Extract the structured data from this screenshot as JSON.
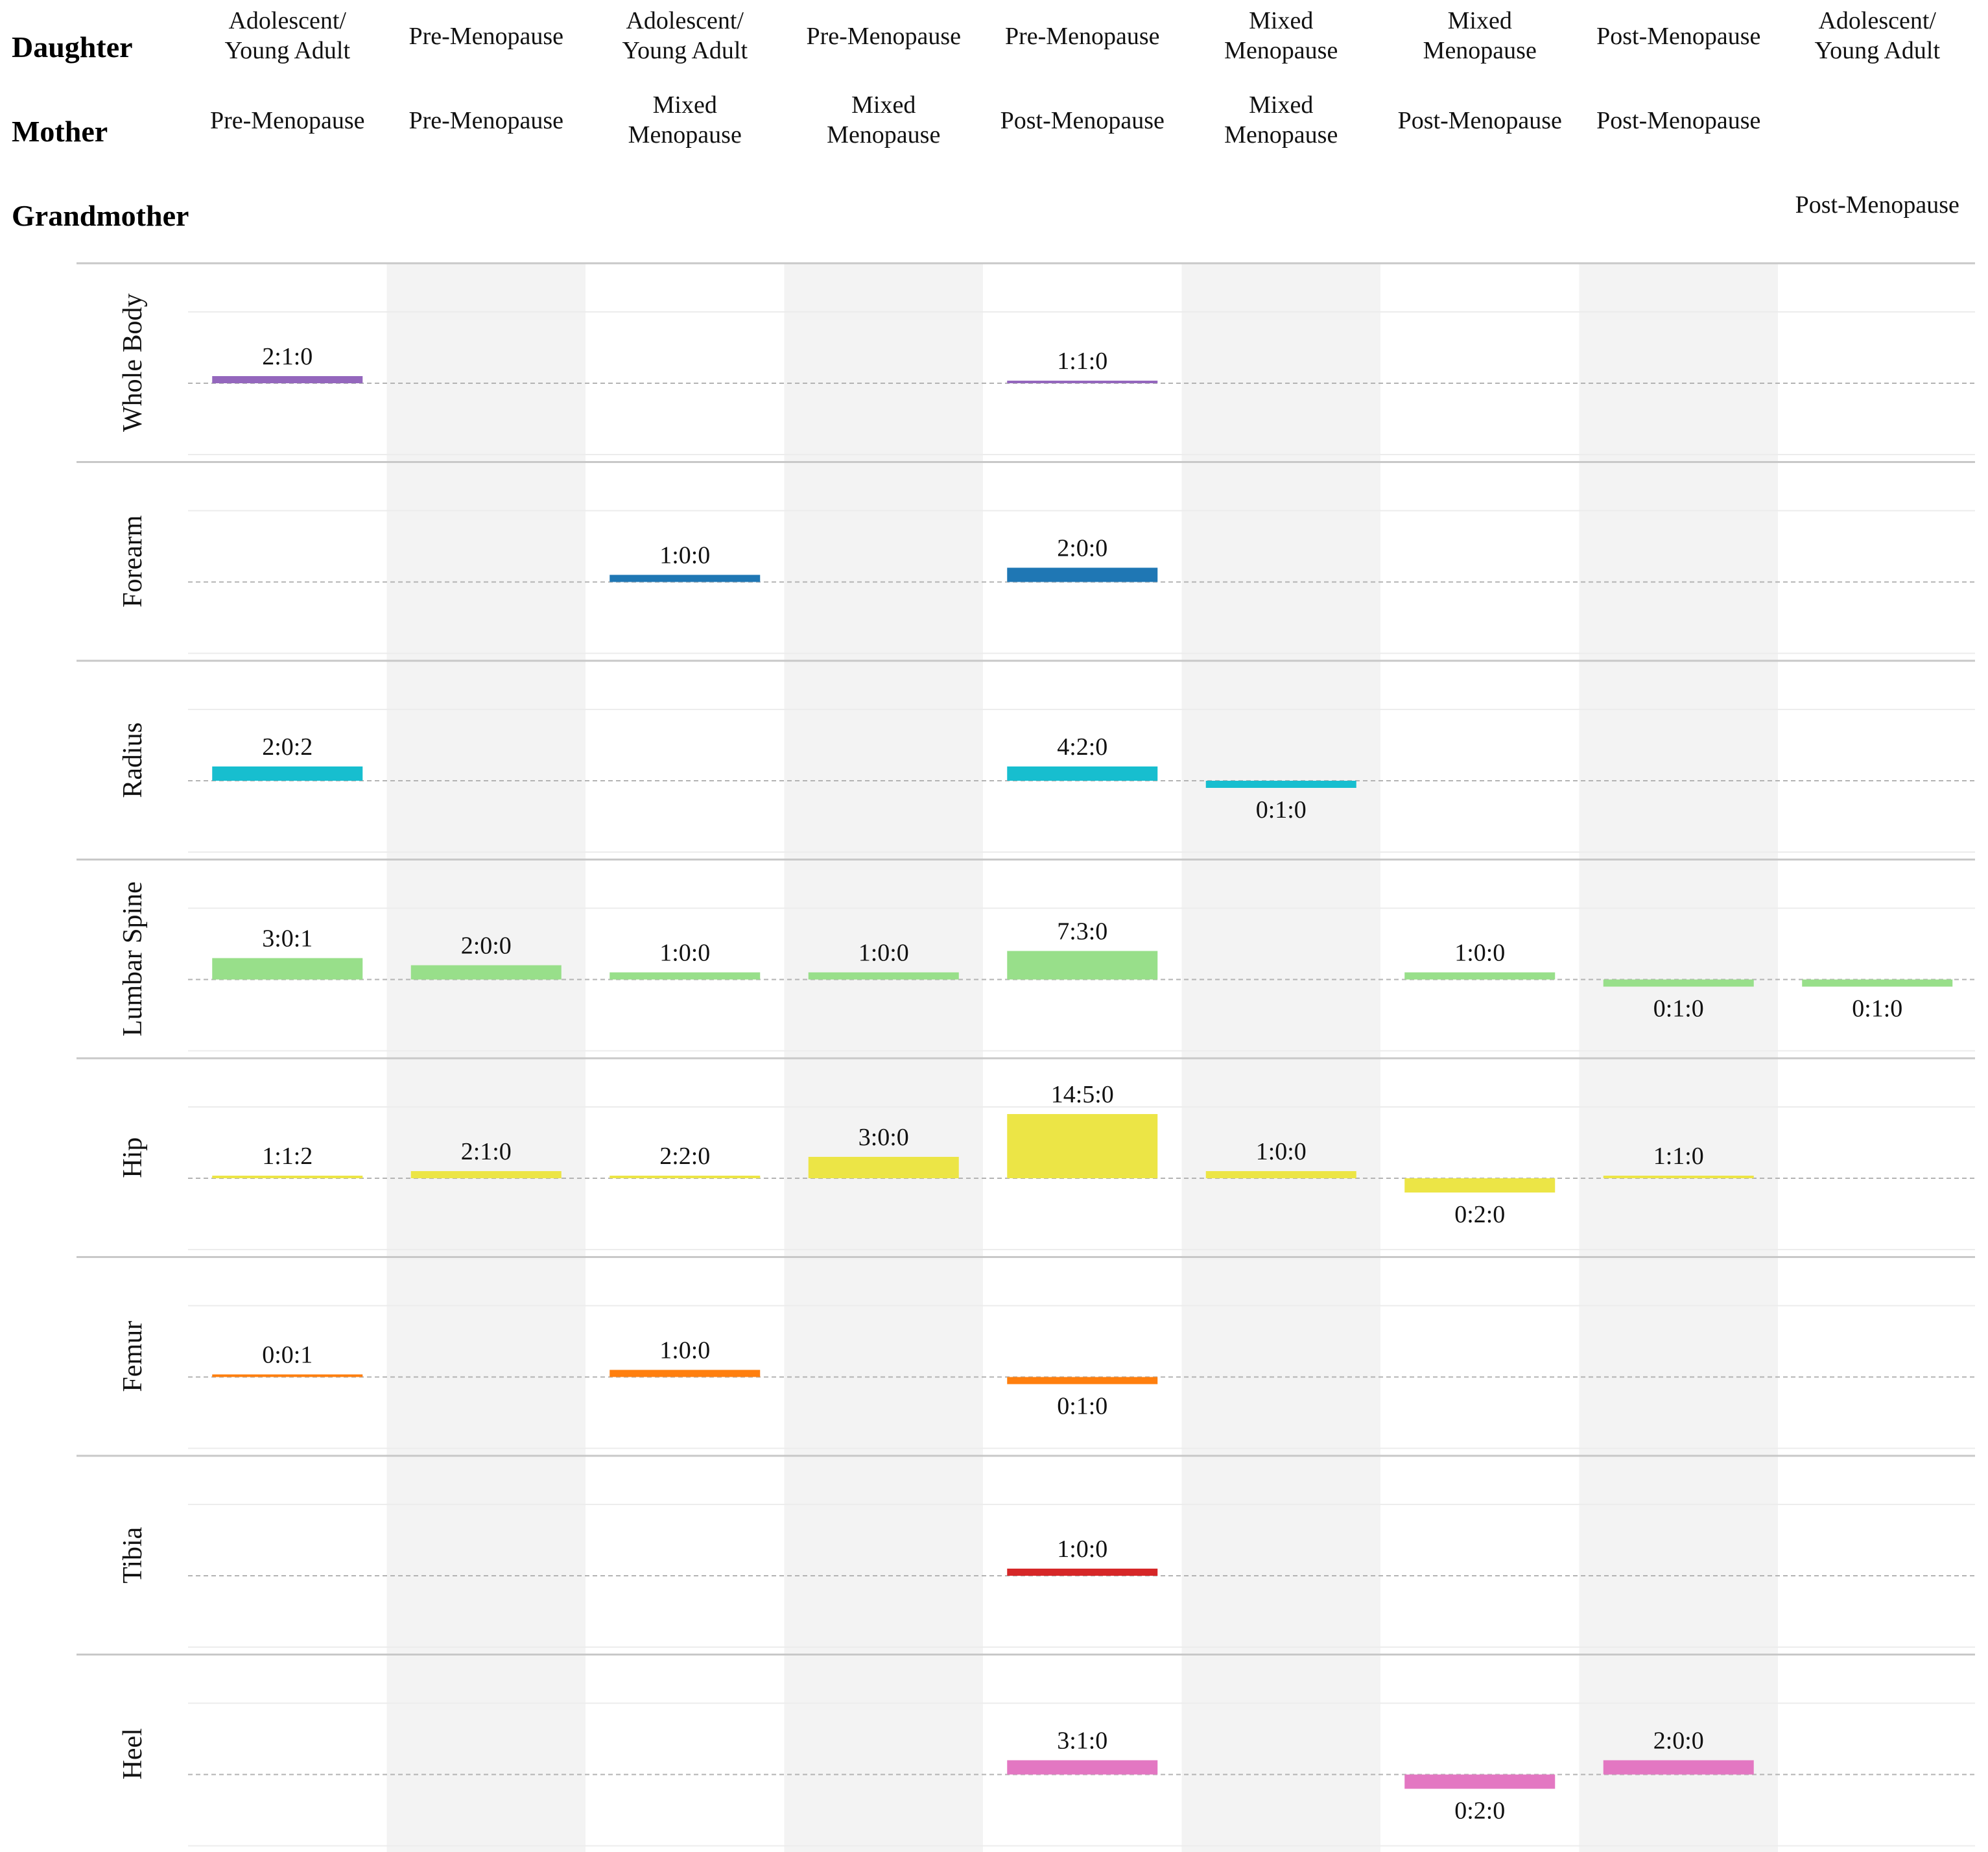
{
  "chart_data": {
    "type": "bar",
    "layout": "small-multiples",
    "header_rows": [
      "Daughter",
      "Mother",
      "Grandmother"
    ],
    "columns": [
      {
        "daughter": [
          "Adolescent/",
          "Young Adult"
        ],
        "mother": [
          "Pre-Menopause"
        ],
        "grandmother": []
      },
      {
        "daughter": [
          "Pre-Menopause"
        ],
        "mother": [
          "Pre-Menopause"
        ],
        "grandmother": []
      },
      {
        "daughter": [
          "Adolescent/",
          "Young Adult"
        ],
        "mother": [
          "Mixed",
          "Menopause"
        ],
        "grandmother": []
      },
      {
        "daughter": [
          "Pre-Menopause"
        ],
        "mother": [
          "Mixed",
          "Menopause"
        ],
        "grandmother": []
      },
      {
        "daughter": [
          "Pre-Menopause"
        ],
        "mother": [
          "Post-Menopause"
        ],
        "grandmother": []
      },
      {
        "daughter": [
          "Mixed",
          "Menopause"
        ],
        "mother": [
          "Mixed",
          "Menopause"
        ],
        "grandmother": []
      },
      {
        "daughter": [
          "Mixed",
          "Menopause"
        ],
        "mother": [
          "Post-Menopause"
        ],
        "grandmother": []
      },
      {
        "daughter": [
          "Post-Menopause"
        ],
        "mother": [
          "Post-Menopause"
        ],
        "grandmother": []
      },
      {
        "daughter": [
          "Adolescent/",
          "Young Adult"
        ],
        "mother": [],
        "grandmother": [
          "Post-Menopause"
        ]
      }
    ],
    "ylim": [
      -10,
      20
    ],
    "baseline": 0,
    "grid": true,
    "value_rule": "net value = first number minus second number of the label",
    "series": [
      {
        "name": "Whole Body",
        "color": "#9467bd",
        "bars": [
          {
            "col": 0,
            "label": "2:1:0",
            "value": 1
          },
          {
            "col": 4,
            "label": "1:1:0",
            "value": 0
          }
        ]
      },
      {
        "name": "Forearm",
        "color": "#1f77b4",
        "bars": [
          {
            "col": 2,
            "label": "1:0:0",
            "value": 1
          },
          {
            "col": 4,
            "label": "2:0:0",
            "value": 2
          }
        ]
      },
      {
        "name": "Radius",
        "color": "#17becf",
        "bars": [
          {
            "col": 0,
            "label": "2:0:2",
            "value": 2
          },
          {
            "col": 4,
            "label": "4:2:0",
            "value": 2
          },
          {
            "col": 5,
            "label": "0:1:0",
            "value": -1
          }
        ]
      },
      {
        "name": "Lumbar Spine",
        "color": "#98df8a",
        "bars": [
          {
            "col": 0,
            "label": "3:0:1",
            "value": 3
          },
          {
            "col": 1,
            "label": "2:0:0",
            "value": 2
          },
          {
            "col": 2,
            "label": "1:0:0",
            "value": 1
          },
          {
            "col": 3,
            "label": "1:0:0",
            "value": 1
          },
          {
            "col": 4,
            "label": "7:3:0",
            "value": 4
          },
          {
            "col": 6,
            "label": "1:0:0",
            "value": 1
          },
          {
            "col": 7,
            "label": "0:1:0",
            "value": -1
          },
          {
            "col": 8,
            "label": "0:1:0",
            "value": -1
          }
        ]
      },
      {
        "name": "Hip",
        "color": "#ece546",
        "bars": [
          {
            "col": 0,
            "label": "1:1:2",
            "value": 0
          },
          {
            "col": 1,
            "label": "2:1:0",
            "value": 1
          },
          {
            "col": 2,
            "label": "2:2:0",
            "value": 0
          },
          {
            "col": 3,
            "label": "3:0:0",
            "value": 3
          },
          {
            "col": 4,
            "label": "14:5:0",
            "value": 9
          },
          {
            "col": 5,
            "label": "1:0:0",
            "value": 1
          },
          {
            "col": 6,
            "label": "0:2:0",
            "value": -2
          },
          {
            "col": 7,
            "label": "1:1:0",
            "value": 0
          }
        ]
      },
      {
        "name": "Femur",
        "color": "#ff7f0e",
        "bars": [
          {
            "col": 0,
            "label": "0:0:1",
            "value": 0
          },
          {
            "col": 2,
            "label": "1:0:0",
            "value": 1
          },
          {
            "col": 4,
            "label": "0:1:0",
            "value": -1
          }
        ]
      },
      {
        "name": "Tibia",
        "color": "#d62728",
        "bars": [
          {
            "col": 4,
            "label": "1:0:0",
            "value": 1
          }
        ]
      },
      {
        "name": "Heel",
        "color": "#e377c2",
        "bars": [
          {
            "col": 4,
            "label": "3:1:0",
            "value": 2
          },
          {
            "col": 6,
            "label": "0:2:0",
            "value": -2
          },
          {
            "col": 7,
            "label": "2:0:0",
            "value": 2
          }
        ]
      }
    ]
  }
}
